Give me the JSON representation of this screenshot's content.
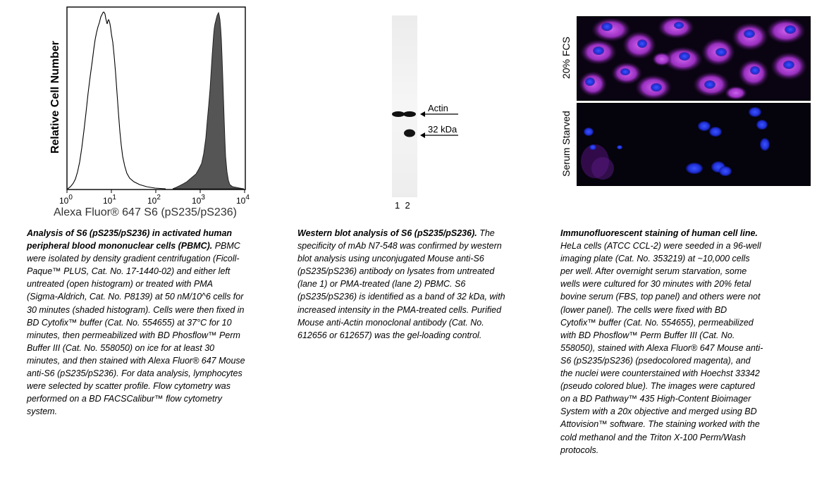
{
  "histogram": {
    "ylabel": "Relative Cell Number",
    "xlabel": "Alexa Fluor® 647 S6 (pS235/pS236)",
    "ticks": [
      {
        "base": "10",
        "exp": "0"
      },
      {
        "base": "10",
        "exp": "1"
      },
      {
        "base": "10",
        "exp": "2"
      },
      {
        "base": "10",
        "exp": "3"
      },
      {
        "base": "10",
        "exp": "4"
      }
    ],
    "colors": {
      "open": "#000000",
      "shaded": "#555555"
    }
  },
  "blot": {
    "actin_label": "Actin",
    "band_label": "32 kDa",
    "lanes": "1  2"
  },
  "if_images": {
    "top_label": "20% FCS",
    "bottom_label": "Serum Starved",
    "colors": {
      "magenta": "#b040d0",
      "blue": "#2030f0"
    }
  },
  "captions": {
    "c1_title": "Analysis of S6 (pS235/pS236) in activated human peripheral blood mononuclear cells (PBMC).",
    "c1_body": " PBMC were isolated by density gradient centrifugation (Ficoll-Paque™ PLUS, Cat. No. 17-1440-02) and either left untreated (open histogram) or treated with PMA (Sigma-Aldrich, Cat. No. P8139) at 50 nM/10^6 cells for 30 minutes (shaded histogram). Cells were then fixed in BD Cytofix™ buffer (Cat. No. 554655) at 37°C for 10 minutes, then permeabilized with BD Phosflow™ Perm Buffer III (Cat. No. 558050) on ice for at least 30 minutes, and then stained with Alexa Fluor® 647 Mouse anti-S6 (pS235/pS236). For data analysis, lymphocytes were selected by scatter profile. Flow cytometry was performed on a BD FACSCalibur™ flow cytometry system.",
    "c2_title": "Western blot analysis of S6 (pS235/pS236).",
    "c2_body": " The specificity of mAb N7-548 was confirmed by western blot analysis using unconjugated Mouse anti-S6 (pS235/pS236) antibody on lysates from untreated (lane 1) or PMA-treated (lane 2) PBMC. S6 (pS235/pS236) is identified as a band of 32 kDa, with increased intensity in the PMA-treated cells.  Purified Mouse anti-Actin monoclonal antibody (Cat. No. 612656 or 612657) was the gel-loading control.",
    "c3_title": "Immunofluorescent staining of human cell line.",
    "c3_body": "  HeLa cells (ATCC CCL-2) were seeded in a 96-well imaging plate (Cat. No. 353219) at ~10,000 cells per well.  After overnight serum starvation, some wells were cultured for 30 minutes with 20% fetal bovine serum (FBS, top panel) and others were not (lower panel). The cells were fixed with BD Cytofix™ buffer (Cat. No. 554655), permeabilized with BD Phosflow™ Perm Buffer III (Cat. No. 558050), stained with Alexa Fluor® 647 Mouse anti-S6 (pS235/pS236) (psedocolored magenta), and the nuclei were counterstained with Hoechst 33342 (pseudo colored blue).  The images were captured on a BD Pathway™ 435 High-Content Bioimager System with a 20x objective and merged using BD Attovision™ software.  The staining worked with the cold methanol and the Triton X-100 Perm/Wash protocols."
  }
}
